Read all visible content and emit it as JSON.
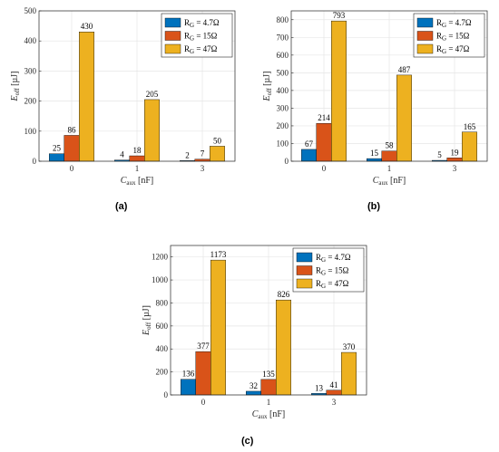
{
  "captions": [
    "(a)",
    "(b)",
    "(c)"
  ],
  "legend": {
    "symbol": "R",
    "subscript": "G",
    "entries": [
      " = 4.7Ω",
      " = 15Ω",
      " = 47Ω"
    ]
  },
  "colors": [
    "#0072BD",
    "#D95319",
    "#EDB120"
  ],
  "chart_data": [
    {
      "type": "bar",
      "title": "",
      "categories": [
        "0",
        "1",
        "3"
      ],
      "xlabel": {
        "symbol": "C",
        "subscript": "aux",
        "unit": " [nF]"
      },
      "ylabel": {
        "symbol": "E",
        "subscript": "off",
        "unit": " [µJ]"
      },
      "ylim": [
        0,
        500
      ],
      "yticks": [
        0,
        100,
        200,
        300,
        400,
        500
      ],
      "grid": true,
      "legend_position": "top-right",
      "series": [
        {
          "name": "RG = 4.7Ω",
          "values": [
            25,
            4,
            2
          ]
        },
        {
          "name": "RG = 15Ω",
          "values": [
            86,
            18,
            7
          ]
        },
        {
          "name": "RG = 47Ω",
          "values": [
            430,
            205,
            50
          ]
        }
      ]
    },
    {
      "type": "bar",
      "title": "",
      "categories": [
        "0",
        "1",
        "3"
      ],
      "xlabel": {
        "symbol": "C",
        "subscript": "aux",
        "unit": " [nF]"
      },
      "ylabel": {
        "symbol": "E",
        "subscript": "off",
        "unit": " [µJ]"
      },
      "ylim": [
        0,
        850
      ],
      "yticks": [
        0,
        100,
        200,
        300,
        400,
        500,
        600,
        700,
        800
      ],
      "grid": true,
      "legend_position": "top-right",
      "series": [
        {
          "name": "RG = 4.7Ω",
          "values": [
            67,
            15,
            5
          ]
        },
        {
          "name": "RG = 15Ω",
          "values": [
            214,
            58,
            19
          ]
        },
        {
          "name": "RG = 47Ω",
          "values": [
            793,
            487,
            165
          ]
        }
      ]
    },
    {
      "type": "bar",
      "title": "",
      "categories": [
        "0",
        "1",
        "3"
      ],
      "xlabel": {
        "symbol": "C",
        "subscript": "aux",
        "unit": " [nF]"
      },
      "ylabel": {
        "symbol": "E",
        "subscript": "off",
        "unit": " [µJ]"
      },
      "ylim": [
        0,
        1300
      ],
      "yticks": [
        0,
        200,
        400,
        600,
        800,
        1000,
        1200
      ],
      "grid": true,
      "legend_position": "top-right",
      "series": [
        {
          "name": "RG = 4.7Ω",
          "values": [
            136,
            32,
            13
          ]
        },
        {
          "name": "RG = 15Ω",
          "values": [
            377,
            135,
            41
          ]
        },
        {
          "name": "RG = 47Ω",
          "values": [
            1173,
            826,
            370
          ]
        }
      ]
    }
  ]
}
